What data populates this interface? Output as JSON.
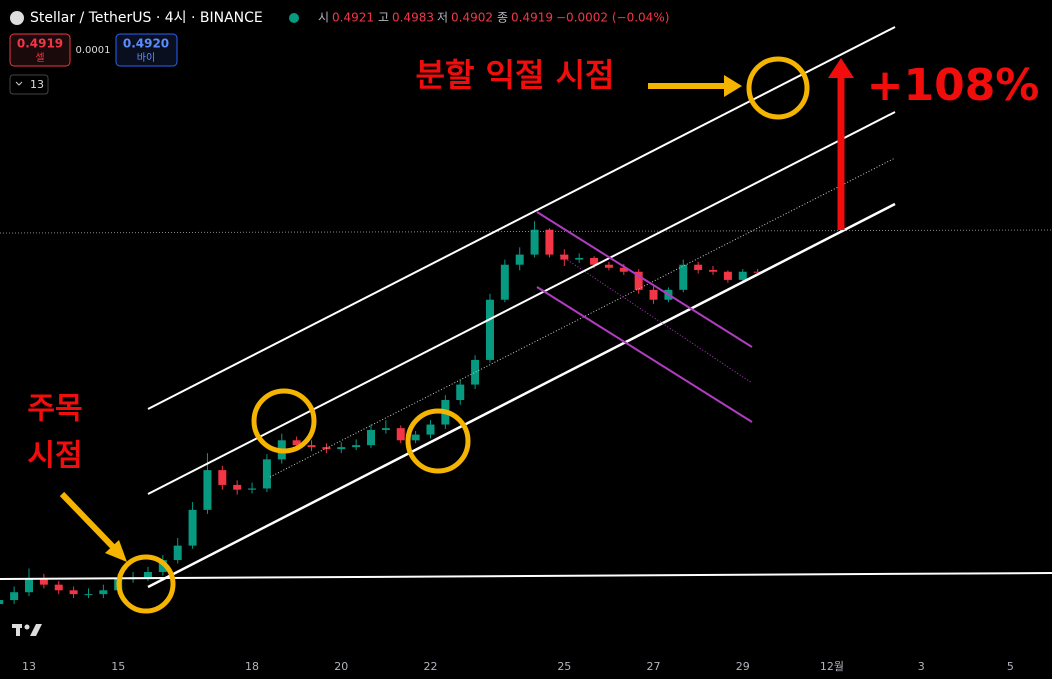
{
  "header": {
    "symbol": "Stellar / TetherUS · 4시 · BINANCE",
    "open_label": "시",
    "open": "0.4921",
    "high_label": "고",
    "high": "0.4983",
    "low_label": "저",
    "low": "0.4902",
    "close_label": "종",
    "close": "0.4919",
    "change": "−0.0002 (−0.04%)",
    "sell_price": "0.4919",
    "sell_label": "셀",
    "spread": "0.0001",
    "buy_price": "0.4920",
    "buy_label": "바이",
    "indicators": "13"
  },
  "chart_data": {
    "type": "candlestick",
    "log_scale": true,
    "ylim": [
      0.0856,
      1.7
    ],
    "up_color": "#089981",
    "down_color": "#f23645",
    "categories": [
      null,
      null,
      "13",
      null,
      null,
      null,
      null,
      null,
      "15",
      null,
      null,
      null,
      null,
      null,
      null,
      null,
      null,
      "18",
      null,
      null,
      null,
      null,
      null,
      "20",
      null,
      null,
      null,
      null,
      null,
      "22",
      null,
      null,
      null,
      null,
      null,
      null,
      null,
      null,
      "25",
      null,
      null,
      null,
      null,
      null,
      "27",
      null,
      null,
      null,
      null,
      null,
      "29",
      null,
      null,
      null,
      null,
      null,
      "12월",
      null,
      null,
      null,
      null,
      null,
      "3",
      null,
      null,
      null,
      null,
      null,
      "5"
    ],
    "open": [
      0.108,
      0.11,
      0.114,
      0.121,
      0.118,
      0.115,
      0.113,
      0.113,
      0.115,
      0.121,
      0.122,
      0.125,
      0.132,
      0.141,
      0.166,
      0.199,
      0.186,
      0.182,
      0.183,
      0.209,
      0.228,
      0.223,
      0.221,
      0.219,
      0.221,
      0.223,
      0.239,
      0.241,
      0.228,
      0.234,
      0.245,
      0.274,
      0.294,
      0.329,
      0.433,
      0.508,
      0.532,
      0.596,
      0.532,
      0.52,
      0.524,
      0.508,
      0.501,
      0.492,
      0.453,
      0.433,
      0.453,
      0.508,
      0.496,
      0.492,
      0.474,
      0.4921,
      null,
      null,
      null,
      null,
      null,
      null,
      null,
      null,
      null,
      null,
      null,
      null,
      null,
      null,
      null,
      null,
      null
    ],
    "high": [
      0.112,
      0.117,
      0.127,
      0.124,
      0.12,
      0.117,
      0.116,
      0.118,
      0.124,
      0.125,
      0.128,
      0.135,
      0.146,
      0.172,
      0.215,
      0.203,
      0.19,
      0.188,
      0.214,
      0.235,
      0.232,
      0.228,
      0.225,
      0.226,
      0.229,
      0.245,
      0.25,
      0.244,
      0.238,
      0.25,
      0.28,
      0.3,
      0.336,
      0.445,
      0.52,
      0.55,
      0.62,
      0.6,
      0.545,
      0.535,
      0.528,
      0.515,
      0.51,
      0.498,
      0.46,
      0.458,
      0.52,
      0.515,
      0.505,
      0.495,
      0.498,
      0.4983,
      null,
      null,
      null,
      null,
      null,
      null,
      null,
      null,
      null,
      null,
      null,
      null,
      null,
      null,
      null,
      null,
      null
    ],
    "low": [
      0.106,
      0.108,
      0.112,
      0.116,
      0.113,
      0.111,
      0.111,
      0.111,
      0.113,
      0.119,
      0.12,
      0.123,
      0.13,
      0.139,
      0.163,
      0.182,
      0.178,
      0.179,
      0.18,
      0.205,
      0.219,
      0.217,
      0.215,
      0.215,
      0.218,
      0.22,
      0.235,
      0.225,
      0.225,
      0.23,
      0.24,
      0.268,
      0.288,
      0.325,
      0.428,
      0.495,
      0.525,
      0.525,
      0.505,
      0.512,
      0.5,
      0.495,
      0.485,
      0.445,
      0.425,
      0.428,
      0.448,
      0.488,
      0.485,
      0.468,
      0.47,
      0.4902,
      null,
      null,
      null,
      null,
      null,
      null,
      null,
      null,
      null,
      null,
      null,
      null,
      null,
      null,
      null,
      null,
      null
    ],
    "close": [
      0.11,
      0.114,
      0.121,
      0.118,
      0.115,
      0.113,
      0.113,
      0.115,
      0.121,
      0.122,
      0.125,
      0.132,
      0.141,
      0.166,
      0.199,
      0.186,
      0.182,
      0.183,
      0.209,
      0.228,
      0.223,
      0.221,
      0.219,
      0.221,
      0.223,
      0.239,
      0.241,
      0.228,
      0.234,
      0.245,
      0.274,
      0.294,
      0.329,
      0.433,
      0.508,
      0.532,
      0.596,
      0.532,
      0.52,
      0.524,
      0.508,
      0.501,
      0.492,
      0.453,
      0.433,
      0.453,
      0.508,
      0.496,
      0.492,
      0.474,
      0.492,
      0.4919,
      null,
      null,
      null,
      null,
      null,
      null,
      null,
      null,
      null,
      null,
      null,
      null,
      null,
      null,
      null,
      null,
      null
    ],
    "annotations": {
      "take_profit": "분할 익절 시점",
      "gain": "+108%",
      "watch": [
        "주목",
        "시점"
      ]
    }
  }
}
